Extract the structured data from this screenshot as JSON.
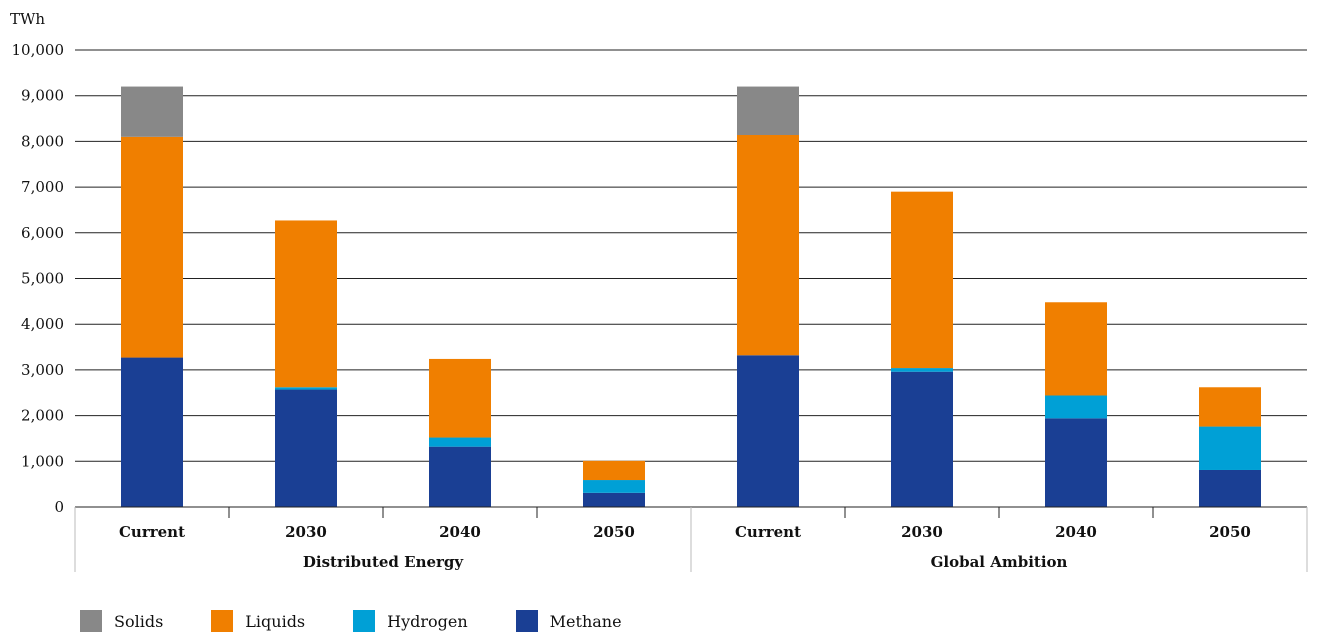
{
  "chart_data": {
    "type": "bar",
    "stacked": true,
    "ylabel": "TWh",
    "ylim": [
      0,
      10000
    ],
    "yticks": [
      "0",
      "1,000",
      "2,000",
      "3,000",
      "4,000",
      "5,000",
      "6,000",
      "7,000",
      "8,000",
      "9,000",
      "10,000"
    ],
    "groups": [
      "Distributed Energy",
      "Global Ambition"
    ],
    "categories": [
      "Current",
      "2030",
      "2040",
      "2050",
      "Current",
      "2030",
      "2040",
      "2050"
    ],
    "series": [
      {
        "name": "Methane",
        "color": "#1a3f94",
        "values": [
          3270,
          2570,
          1320,
          310,
          3320,
          2960,
          1940,
          810
        ]
      },
      {
        "name": "Hydrogen",
        "color": "#00a0d6",
        "values": [
          0,
          50,
          200,
          280,
          0,
          80,
          500,
          950
        ]
      },
      {
        "name": "Liquids",
        "color": "#f07f00",
        "values": [
          4830,
          3650,
          1720,
          420,
          4820,
          3860,
          2040,
          860
        ]
      },
      {
        "name": "Solids",
        "color": "#888888",
        "values": [
          1100,
          0,
          0,
          0,
          1060,
          0,
          0,
          0
        ]
      }
    ],
    "legend_order": [
      "Solids",
      "Liquids",
      "Hydrogen",
      "Methane"
    ],
    "legend_position": "bottom-left",
    "grid": true
  }
}
